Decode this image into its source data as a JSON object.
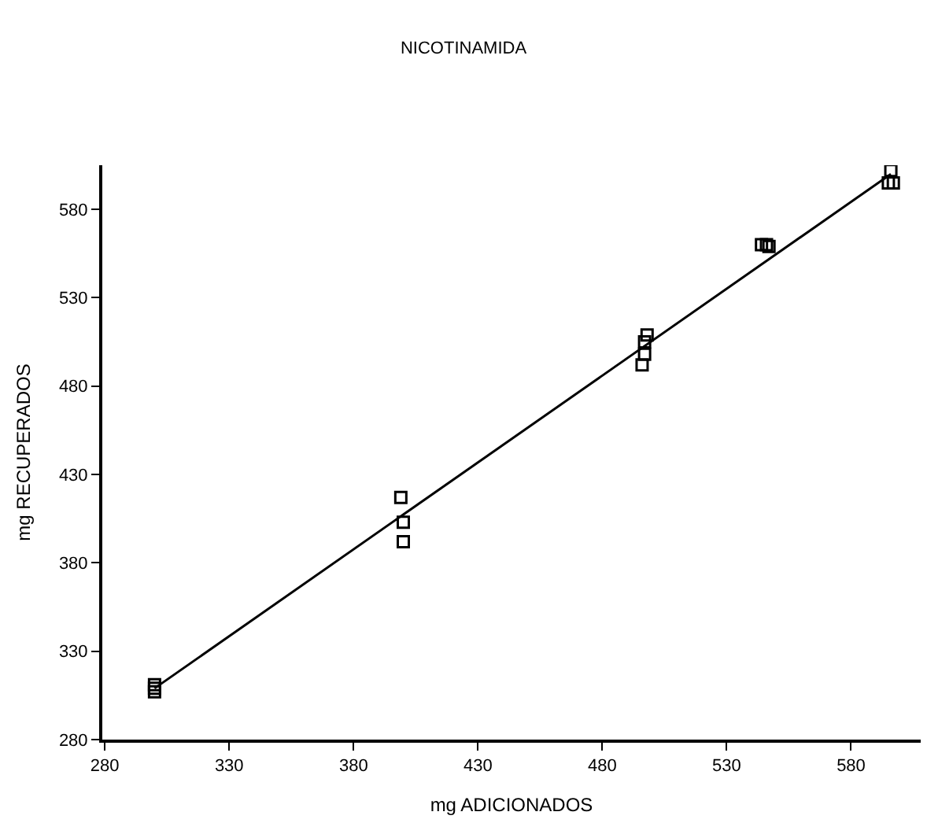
{
  "chart_data": {
    "type": "scatter",
    "title": "NICOTINAMIDA",
    "xlabel": "mg ADICIONADOS",
    "ylabel": "mg RECUPERADOS",
    "xlim": [
      279,
      608
    ],
    "ylim": [
      280,
      605
    ],
    "xticks": [
      280,
      330,
      380,
      430,
      480,
      530,
      580
    ],
    "yticks": [
      280,
      330,
      380,
      430,
      480,
      530,
      580
    ],
    "series": [
      {
        "marker": "square",
        "color": "#000000",
        "x": [
          300,
          300,
          300,
          399,
          400,
          400,
          498,
          497,
          497,
          496,
          544,
          546,
          547,
          596,
          595,
          597
        ],
        "values": [
          311,
          309,
          307,
          417,
          403,
          392,
          509,
          505,
          498,
          492,
          560,
          560,
          559,
          602,
          595,
          595
        ]
      },
      {
        "type": "line",
        "marker": "none",
        "line_style": "solid",
        "color": "#000000",
        "x": [
          300,
          596
        ],
        "values": [
          309,
          600
        ]
      }
    ]
  }
}
